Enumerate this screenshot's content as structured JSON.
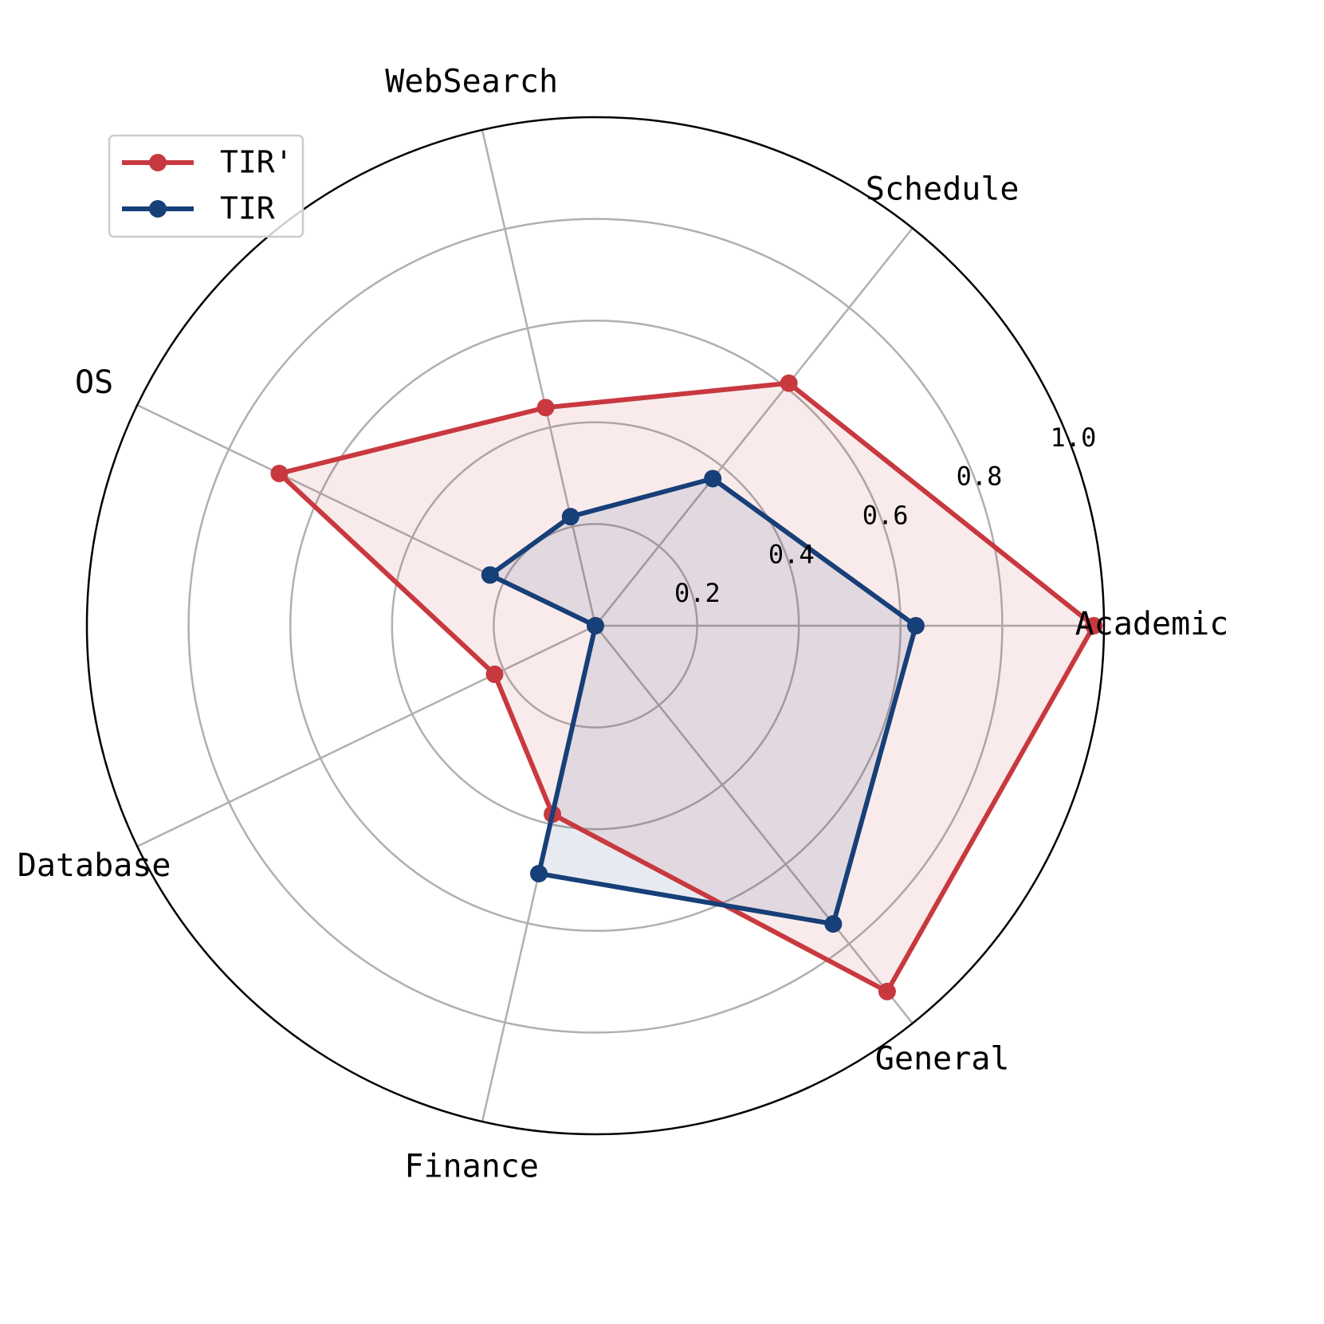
{
  "chart_data": {
    "type": "radar",
    "categories": [
      "Academic",
      "Schedule",
      "WebSearch",
      "OS",
      "Database",
      "Finance",
      "General"
    ],
    "series": [
      {
        "name": "TIR'",
        "color": "#c8393f",
        "values": [
          0.98,
          0.61,
          0.44,
          0.69,
          0.22,
          0.38,
          0.92
        ]
      },
      {
        "name": "TIR",
        "color": "#173f78",
        "values": [
          0.63,
          0.37,
          0.22,
          0.23,
          0,
          0.5,
          0.75
        ]
      }
    ],
    "ylim": [
      0,
      1
    ],
    "yticks": [
      0.2,
      0.4,
      0.6,
      0.8,
      {
        "value": 1,
        "label": "1.0"
      }
    ],
    "grid": true,
    "legend": "upper left"
  }
}
